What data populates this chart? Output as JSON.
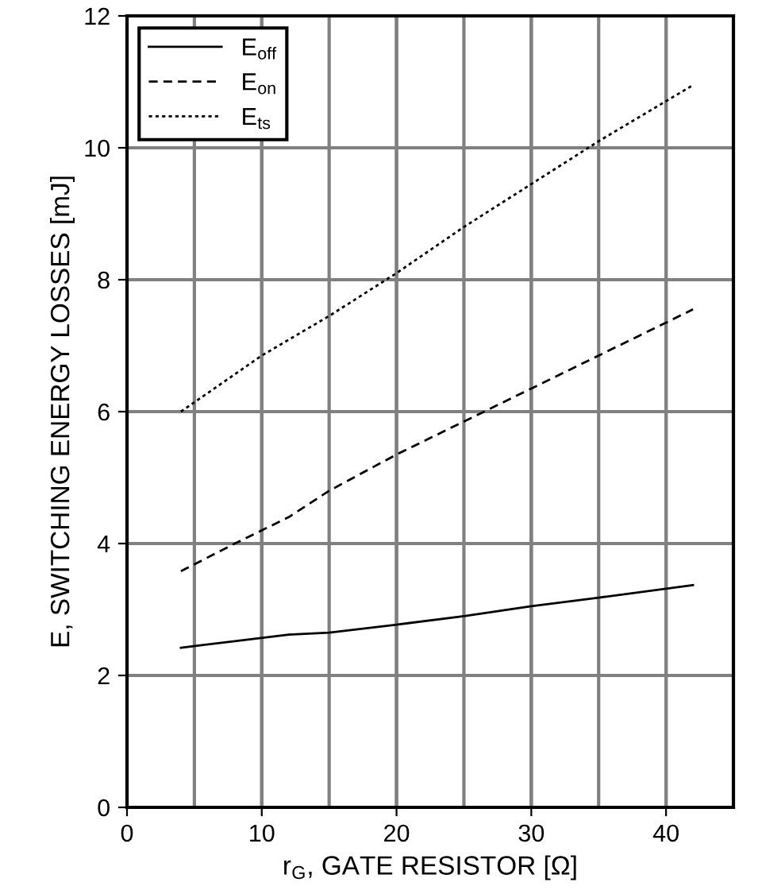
{
  "chart_data": {
    "type": "line",
    "xlabel": "r$_{G}$, GATE RESISTOR [Ω]",
    "ylabel": "E, SWITCHING ENERGY LOSSES [mJ]",
    "xlim": [
      0,
      45
    ],
    "xticks": [
      0,
      10,
      20,
      30,
      40
    ],
    "ylim": [
      0,
      12
    ],
    "yticks": [
      0,
      2,
      4,
      6,
      8,
      10,
      12
    ],
    "grid": true,
    "legend": "top left",
    "marker": "none",
    "series": [
      {
        "name": "E$_{off}$",
        "color": "#000000",
        "line_style": "solid",
        "x": [
          4,
          8,
          12,
          15,
          20,
          25,
          30,
          35,
          42
        ],
        "values": [
          2.42,
          2.52,
          2.62,
          2.65,
          2.77,
          2.9,
          3.05,
          3.18,
          3.37
        ]
      },
      {
        "name": "E$_{on}$",
        "color": "#000000",
        "line_style": "dashed",
        "x": [
          4,
          8,
          12,
          15,
          20,
          25,
          30,
          35,
          42
        ],
        "values": [
          3.58,
          4.0,
          4.4,
          4.8,
          5.35,
          5.85,
          6.35,
          6.85,
          7.55
        ]
      },
      {
        "name": "E$_{ts}$",
        "color": "#000000",
        "line_style": "dotted",
        "x": [
          4,
          10,
          15,
          20,
          25,
          30,
          35,
          42
        ],
        "values": [
          6.0,
          6.85,
          7.45,
          8.1,
          8.8,
          9.45,
          10.1,
          10.95
        ]
      }
    ]
  }
}
